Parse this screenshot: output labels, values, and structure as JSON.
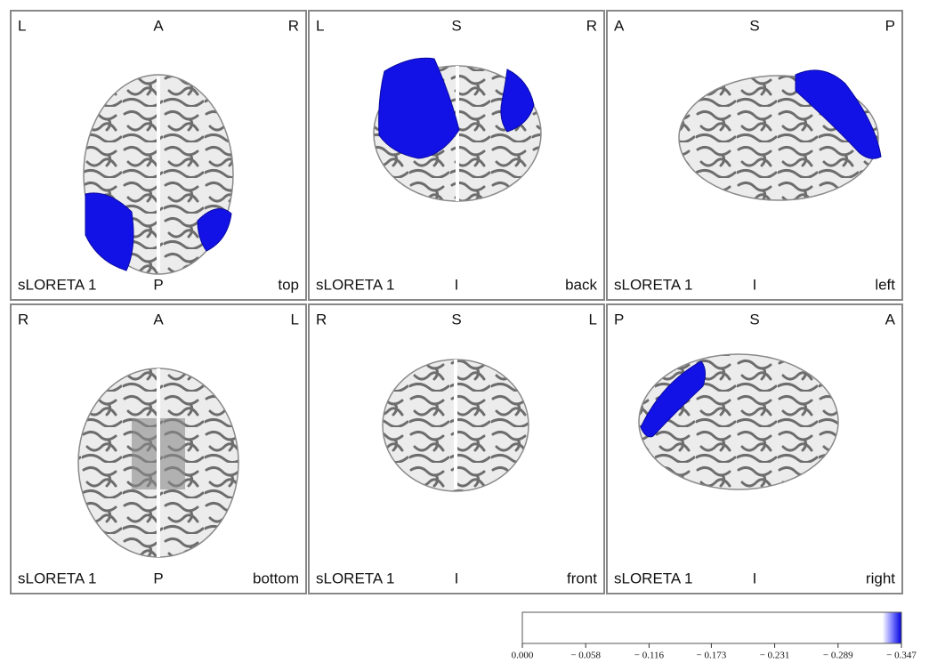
{
  "panels": [
    {
      "top": [
        "L",
        "A",
        "R"
      ],
      "bottom": [
        "sLORETA 1",
        "P",
        "top"
      ]
    },
    {
      "top": [
        "L",
        "S",
        "R"
      ],
      "bottom": [
        "sLORETA 1",
        "I",
        "back"
      ]
    },
    {
      "top": [
        "A",
        "S",
        "P"
      ],
      "bottom": [
        "sLORETA 1",
        "I",
        "left"
      ]
    },
    {
      "top": [
        "R",
        "A",
        "L"
      ],
      "bottom": [
        "sLORETA 1",
        "P",
        "bottom"
      ]
    },
    {
      "top": [
        "R",
        "S",
        "L"
      ],
      "bottom": [
        "sLORETA 1",
        "I",
        "front"
      ]
    },
    {
      "top": [
        "P",
        "S",
        "A"
      ],
      "bottom": [
        "sLORETA 1",
        "I",
        "right"
      ]
    }
  ],
  "colorbar": {
    "lim": [
      0,
      -0.347
    ],
    "ticks": [
      {
        "value": 0,
        "label": "0.000"
      },
      {
        "value": -0.058,
        "label": "− 0.058"
      },
      {
        "value": -0.116,
        "label": "− 0.116"
      },
      {
        "value": -0.173,
        "label": "− 0.173"
      },
      {
        "value": -0.231,
        "label": "− 0.231"
      },
      {
        "value": -0.289,
        "label": "− 0.289"
      },
      {
        "value": -0.347,
        "label": "− 0.347"
      }
    ]
  }
}
